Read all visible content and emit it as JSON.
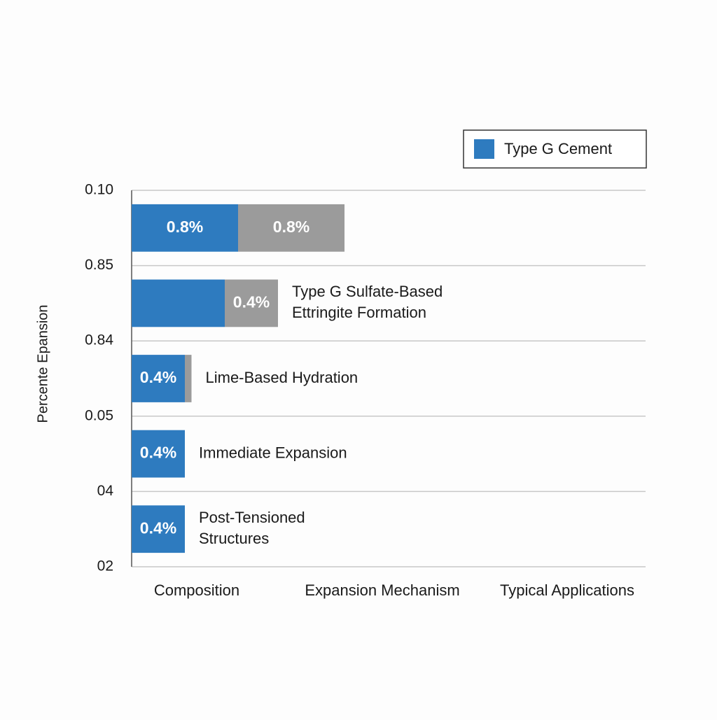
{
  "chart_data": {
    "type": "bar",
    "orientation": "horizontal",
    "stacked": true,
    "y_title": "Percente Epansion",
    "y_labels": [
      "0.10",
      "0.85",
      "0.84",
      "0.05",
      "04",
      "02"
    ],
    "x_labels": [
      "Composition",
      "Expansion Mechanism",
      "Typical Applications"
    ],
    "annotations": [
      null,
      [
        "Type G Sulfate-Based",
        "Ettringite Formation"
      ],
      [
        "Lime-Based Hydration"
      ],
      [
        "Immediate Expansion"
      ],
      [
        "Post-Tensioned",
        "Structures"
      ]
    ],
    "legend": "top-right",
    "grid": true,
    "series": [
      {
        "name": "Type G Cement",
        "color": "#2e7bbf",
        "values": [
          0.8,
          0.7,
          0.4,
          0.4,
          0.4
        ],
        "value_labels": [
          "0.8%",
          null,
          "0.4%",
          "0.4%",
          "0.4%"
        ]
      },
      {
        "color": "#9b9b9b",
        "values": [
          0.8,
          0.4,
          0.05,
          null,
          null
        ],
        "value_labels": [
          "0.8%",
          "0.4%",
          null,
          null,
          null
        ]
      }
    ]
  }
}
